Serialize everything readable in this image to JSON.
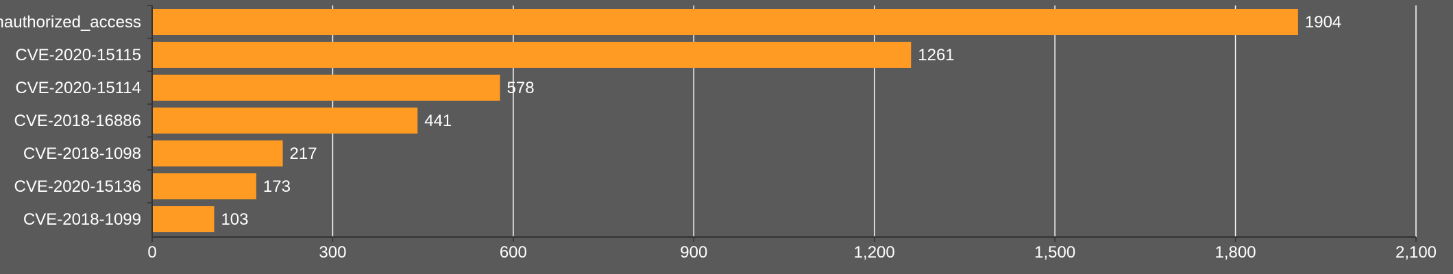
{
  "chart_data": {
    "type": "bar",
    "orientation": "horizontal",
    "categories": [
      "unauthorized_access",
      "CVE-2020-15115",
      "CVE-2020-15114",
      "CVE-2018-16886",
      "CVE-2018-1098",
      "CVE-2020-15136",
      "CVE-2018-1099"
    ],
    "values": [
      1904,
      1261,
      578,
      441,
      217,
      173,
      103
    ],
    "value_labels": [
      "1904",
      "1261",
      "578",
      "441",
      "217",
      "173",
      "103"
    ],
    "xlim": [
      0,
      2100
    ],
    "x_ticks": [
      0,
      300,
      600,
      900,
      1200,
      1500,
      1800,
      2100
    ],
    "x_tick_labels": [
      "0",
      "300",
      "600",
      "900",
      "1,200",
      "1,500",
      "1,800",
      "2,100"
    ],
    "title": "",
    "xlabel": "",
    "ylabel": "",
    "grid": "vertical",
    "legend": "none",
    "colors": {
      "background": "#5a5a5a",
      "bar": "#ff9a23",
      "grid": "#ffffff",
      "text": "#ffffff",
      "axis": "#333333"
    }
  }
}
